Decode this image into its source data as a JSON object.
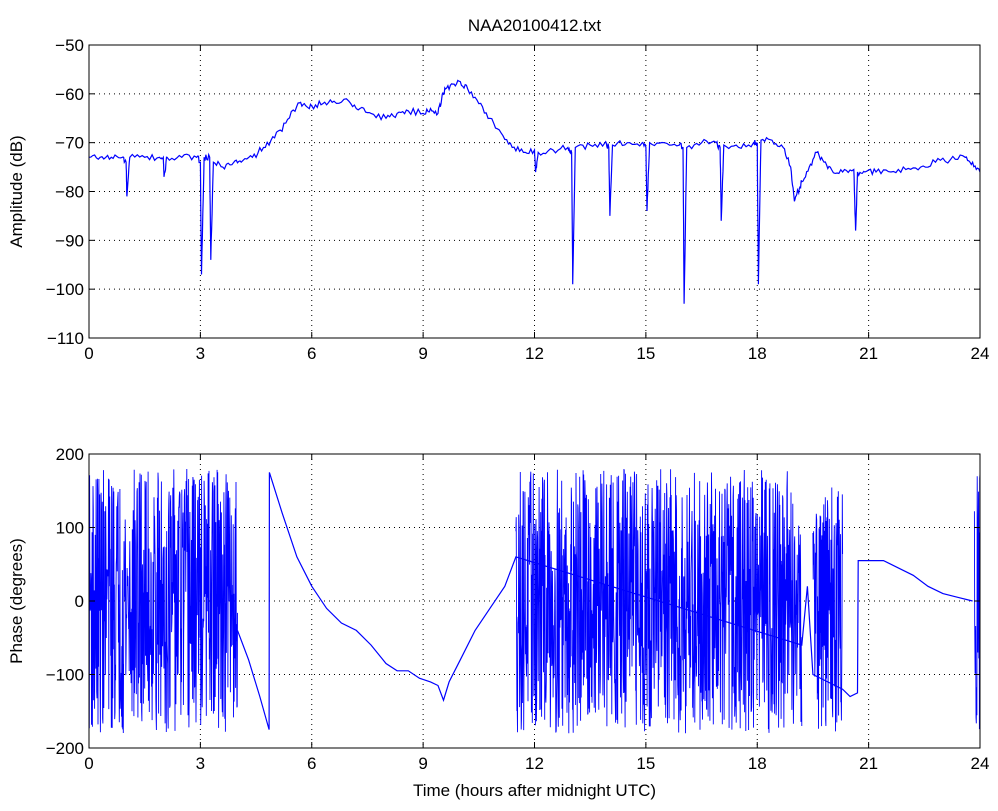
{
  "chart_data": [
    {
      "type": "line",
      "title": "NAA20100412.txt",
      "xlabel": "",
      "ylabel": "Amplitude (dB)",
      "xlim": [
        0,
        24
      ],
      "ylim": [
        -110,
        -50
      ],
      "xticks": [
        0,
        3,
        6,
        9,
        12,
        15,
        18,
        21,
        24
      ],
      "yticks": [
        -50,
        -60,
        -70,
        -80,
        -90,
        -100,
        -110
      ],
      "xtick_labels": [
        "0",
        "3",
        "6",
        "9",
        "12",
        "15",
        "18",
        "21",
        "24"
      ],
      "ytick_labels": [
        "−50",
        "−60",
        "−70",
        "−80",
        "−90",
        "−100",
        "−110"
      ],
      "grid": true,
      "line_color": "#0000ff",
      "series": [
        {
          "x": [
            0,
            0.3,
            0.6,
            0.9,
            1.0,
            1.02,
            1.1,
            1.5,
            1.9,
            2.0,
            2.02,
            2.1,
            2.5,
            2.9,
            3.0,
            3.03,
            3.1,
            3.25,
            3.28,
            3.35,
            3.6,
            3.9,
            4.1,
            4.4,
            4.7,
            5.0,
            5.3,
            5.6,
            5.8,
            6.0,
            6.3,
            6.6,
            7.0,
            7.3,
            7.6,
            8.0,
            8.3,
            8.6,
            9.0,
            9.2,
            9.4,
            9.5,
            9.6,
            9.8,
            10.0,
            10.2,
            10.5,
            10.8,
            11.1,
            11.4,
            11.7,
            12.0,
            12.03,
            12.1,
            12.5,
            12.9,
            13.0,
            13.03,
            13.1,
            13.5,
            13.9,
            14.0,
            14.03,
            14.1,
            14.5,
            14.9,
            15.0,
            15.03,
            15.1,
            15.5,
            15.9,
            16.0,
            16.03,
            16.1,
            16.5,
            16.9,
            17.0,
            17.03,
            17.1,
            17.5,
            17.9,
            18.0,
            18.03,
            18.1,
            18.4,
            18.7,
            18.9,
            19.0,
            19.1,
            19.2,
            19.4,
            19.6,
            19.8,
            20.0,
            20.3,
            20.6,
            20.65,
            20.7,
            20.9,
            21.2,
            21.6,
            22.0,
            22.4,
            22.8,
            23.2,
            23.6,
            23.8,
            24.0
          ],
          "y": [
            -73,
            -73,
            -73,
            -73,
            -74,
            -81,
            -73,
            -73,
            -73,
            -73,
            -77,
            -73,
            -73,
            -73,
            -74,
            -97,
            -73,
            -73,
            -94,
            -74,
            -75,
            -74,
            -74,
            -73,
            -71,
            -69,
            -66,
            -62.5,
            -62,
            -62.5,
            -62,
            -61.5,
            -61.5,
            -63,
            -64,
            -65,
            -64,
            -63.5,
            -64,
            -63,
            -64,
            -61,
            -59,
            -58,
            -57.5,
            -59,
            -62,
            -65,
            -68,
            -71,
            -72,
            -71.5,
            -76,
            -72,
            -71.5,
            -71,
            -72,
            -99,
            -71,
            -70.5,
            -70,
            -71,
            -85,
            -70.5,
            -70,
            -70,
            -71,
            -84,
            -70,
            -70,
            -70.5,
            -71,
            -103,
            -71,
            -70,
            -70,
            -71,
            -86,
            -70.5,
            -71,
            -70,
            -70,
            -99,
            -69.5,
            -69.5,
            -71,
            -75,
            -82,
            -80,
            -78,
            -75,
            -72,
            -74,
            -75.5,
            -76,
            -75.5,
            -88,
            -76,
            -76,
            -76,
            -76,
            -75.5,
            -75,
            -74,
            -73.5,
            -73,
            -74,
            -76
          ]
        }
      ]
    },
    {
      "type": "line",
      "title": "",
      "xlabel": "Time (hours after midnight UTC)",
      "ylabel": "Phase (degrees)",
      "xlim": [
        0,
        24
      ],
      "ylim": [
        -200,
        200
      ],
      "xticks": [
        0,
        3,
        6,
        9,
        12,
        15,
        18,
        21,
        24
      ],
      "yticks": [
        200,
        100,
        0,
        -100,
        -200
      ],
      "xtick_labels": [
        "0",
        "3",
        "6",
        "9",
        "12",
        "15",
        "18",
        "21",
        "24"
      ],
      "ytick_labels": [
        "200",
        "100",
        "0",
        "−100",
        "−200"
      ],
      "grid": true,
      "line_color": "#0000ff",
      "noisy_segments": [
        {
          "x_range": [
            0.0,
            4.0
          ],
          "y_range": [
            -180,
            180
          ]
        },
        {
          "x_range": [
            11.5,
            19.2
          ],
          "y_range": [
            -180,
            180
          ]
        },
        {
          "x_range": [
            19.5,
            20.3
          ],
          "y_range": [
            -180,
            160
          ]
        },
        {
          "x_range": [
            23.85,
            24.0
          ],
          "y_range": [
            -180,
            180
          ]
        }
      ],
      "series": [
        {
          "x": [
            4.0,
            4.3,
            4.6,
            4.85,
            4.86,
            5.2,
            5.6,
            6.0,
            6.4,
            6.8,
            7.2,
            7.6,
            8.0,
            8.3,
            8.6,
            8.9,
            9.2,
            9.4,
            9.55,
            9.7,
            10.0,
            10.4,
            10.8,
            11.2,
            11.5,
            19.2,
            19.35,
            19.5,
            20.3,
            20.5,
            20.7,
            20.72,
            21.0,
            21.4,
            21.8,
            22.2,
            22.6,
            23.0,
            23.4,
            23.8
          ],
          "y": [
            -40,
            -80,
            -130,
            -175,
            175,
            120,
            60,
            20,
            -10,
            -30,
            -40,
            -60,
            -85,
            -95,
            -95,
            -105,
            -110,
            -115,
            -135,
            -110,
            -80,
            -40,
            -10,
            20,
            60,
            -60,
            20,
            -100,
            -120,
            -130,
            -125,
            55,
            55,
            55,
            45,
            35,
            20,
            10,
            5,
            0
          ]
        }
      ]
    }
  ]
}
